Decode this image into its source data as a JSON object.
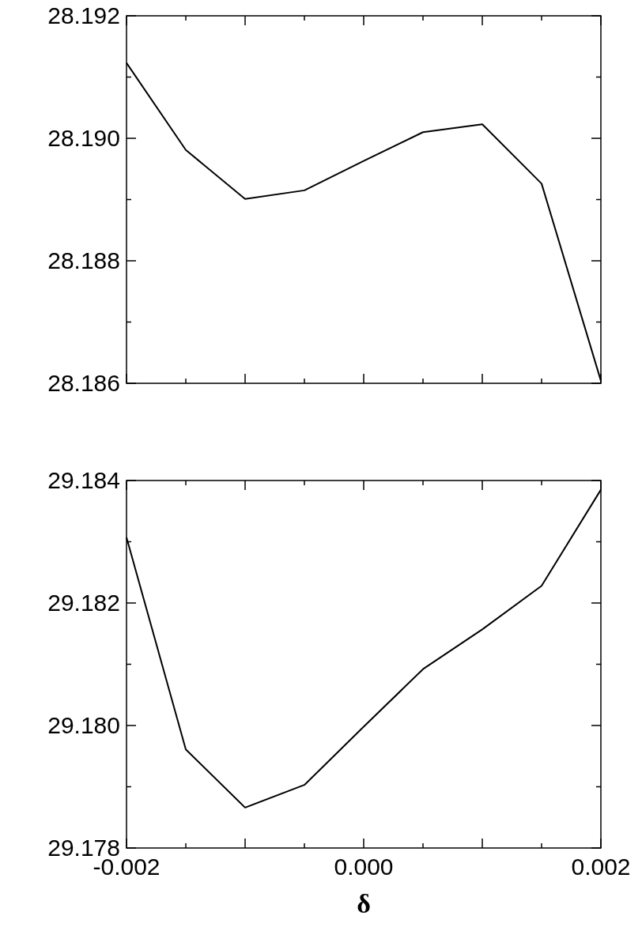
{
  "chart_data": [
    {
      "type": "line",
      "x": [
        -0.002,
        -0.0015,
        -0.001,
        -0.0005,
        0,
        0.0005,
        0.001,
        0.0015,
        0.002
      ],
      "values": [
        28.19123,
        28.18981,
        28.18901,
        28.18915,
        28.18963,
        28.1901,
        28.19023,
        28.18926,
        28.18604
      ],
      "color": "#000000",
      "xlim": [
        -0.002,
        0.002
      ],
      "ylim": [
        28.186,
        28.192
      ],
      "xticks": [
        {
          "value": -0.002,
          "label": null
        },
        {
          "value": -0.0015,
          "label": null
        },
        {
          "value": -0.001,
          "label": null
        },
        {
          "value": -0.0005,
          "label": null
        },
        {
          "value": 0,
          "label": null
        },
        {
          "value": 0.0005,
          "label": null
        },
        {
          "value": 0.001,
          "label": null
        },
        {
          "value": 0.0015,
          "label": null
        },
        {
          "value": 0.002,
          "label": null
        }
      ],
      "yticks": [
        {
          "value": 28.186,
          "label": "28.186"
        },
        {
          "value": 28.187,
          "label": null
        },
        {
          "value": 28.188,
          "label": "28.188"
        },
        {
          "value": 28.189,
          "label": null
        },
        {
          "value": 28.19,
          "label": "28.190"
        },
        {
          "value": 28.191,
          "label": null
        },
        {
          "value": 28.192,
          "label": "28.192"
        }
      ],
      "tick_labels": "y",
      "grid": false,
      "marker": "none"
    },
    {
      "type": "line",
      "x": [
        -0.002,
        -0.0015,
        -0.001,
        -0.0005,
        0,
        0.0005,
        0.001,
        0.0015,
        0.002
      ],
      "values": [
        29.18307,
        29.17961,
        29.17866,
        29.17903,
        29.17998,
        29.18092,
        29.18157,
        29.18228,
        29.18385
      ],
      "color": "#000000",
      "xlim": [
        -0.002,
        0.002
      ],
      "ylim": [
        29.178,
        29.184
      ],
      "xlabel": "δ",
      "xticks": [
        {
          "value": -0.002,
          "label": "-0.002"
        },
        {
          "value": -0.0015,
          "label": null
        },
        {
          "value": -0.001,
          "label": null
        },
        {
          "value": -0.0005,
          "label": null
        },
        {
          "value": 0,
          "label": "0.000"
        },
        {
          "value": 0.0005,
          "label": null
        },
        {
          "value": 0.001,
          "label": null
        },
        {
          "value": 0.0015,
          "label": null
        },
        {
          "value": 0.002,
          "label": "0.002"
        }
      ],
      "yticks": [
        {
          "value": 29.178,
          "label": "29.178"
        },
        {
          "value": 29.179,
          "label": null
        },
        {
          "value": 29.18,
          "label": "29.180"
        },
        {
          "value": 29.181,
          "label": null
        },
        {
          "value": 29.182,
          "label": "29.182"
        },
        {
          "value": 29.183,
          "label": null
        },
        {
          "value": 29.184,
          "label": "29.184"
        }
      ],
      "grid": false,
      "marker": "none"
    }
  ]
}
